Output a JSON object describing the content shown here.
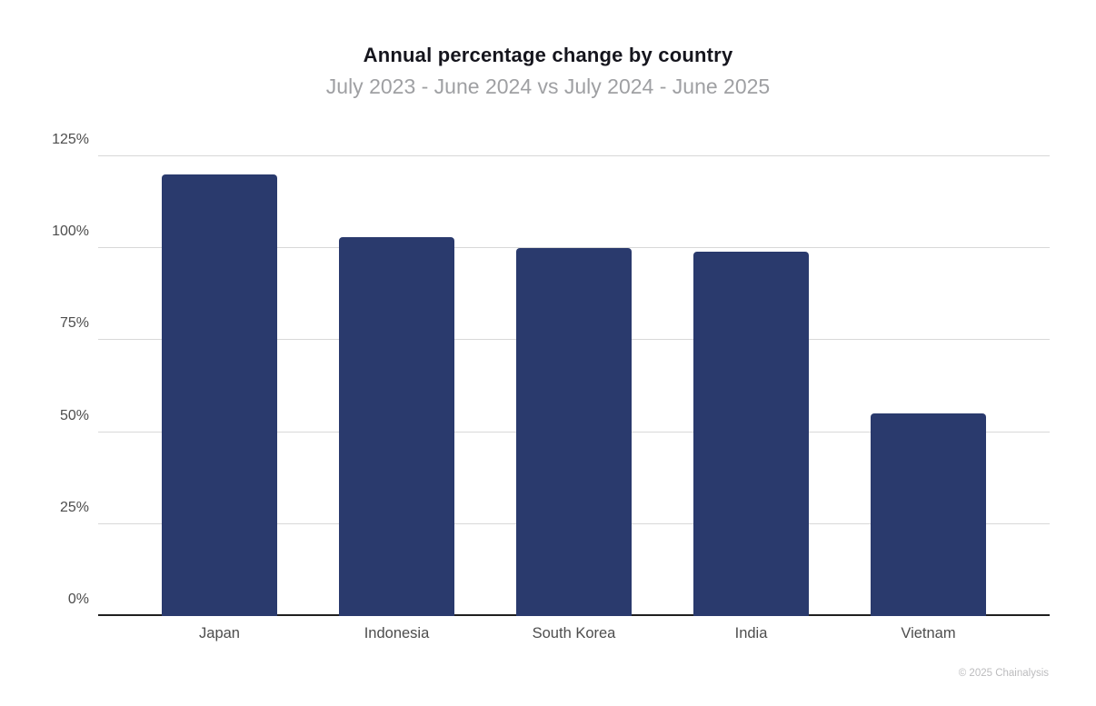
{
  "chart_data": {
    "type": "bar",
    "title": "Annual percentage change by country",
    "subtitle": "July 2023 - June 2024 vs July 2024 - June 2025",
    "categories": [
      "Japan",
      "Indonesia",
      "South Korea",
      "India",
      "Vietnam"
    ],
    "values": [
      120,
      103,
      100,
      99,
      55
    ],
    "value_unit": "%",
    "xlabel": "",
    "ylabel": "",
    "ylim": [
      0,
      125
    ],
    "ytick_values": [
      0,
      25,
      50,
      75,
      100,
      125
    ],
    "ytick_labels": [
      "0%",
      "25%",
      "50%",
      "75%",
      "100%",
      "125%"
    ],
    "grid": "horizontal",
    "legend": "none",
    "bar_color": "#2a3a6d",
    "gridline_color": "#d8d8d8",
    "axis_line_color": "#1f1f1f",
    "title_color": "#15151d",
    "subtitle_color": "#9fa0a3",
    "tick_label_color": "#4d4d4d"
  },
  "footer": {
    "copyright": "© 2025 Chainalysis"
  }
}
